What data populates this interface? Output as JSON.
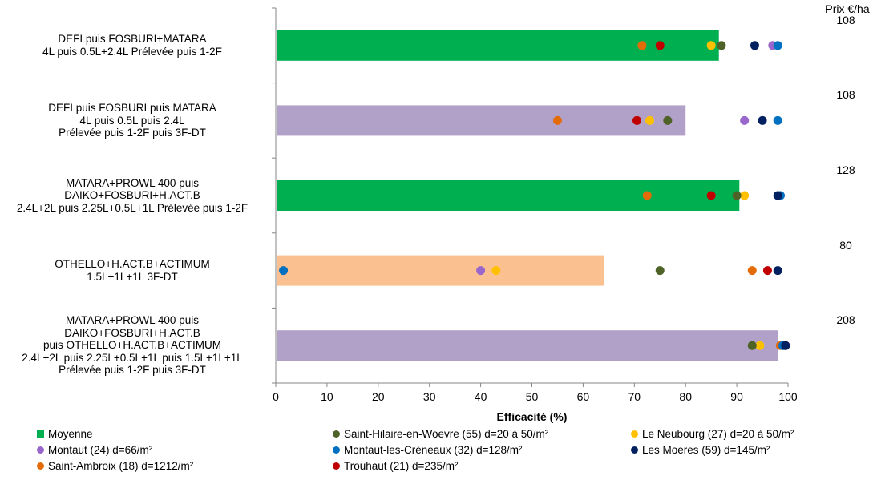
{
  "chart_data": {
    "type": "bar",
    "orientation": "horizontal",
    "xlabel": "Efficacité (%)",
    "xlim": [
      0,
      100
    ],
    "x_ticks": [
      "0",
      "10",
      "20",
      "30",
      "40",
      "50",
      "60",
      "70",
      "80",
      "90",
      "100"
    ],
    "grid": false,
    "price_header": "Prix €/ha",
    "categories": [
      {
        "label": "DEFI puis FOSBURI+MATARA\n4L puis 0.5L+2.4L Prélevée puis 1-2F",
        "moyenne": 86.5,
        "bar_color": "#00b050",
        "price": "108",
        "sites": {
          "saint_hilaire": 87,
          "le_neubourg": 85,
          "montaut": 97,
          "montaut_les_creneaux": 98,
          "les_moeres": 93.5,
          "saint_ambroix": 71.5,
          "trouhaut": 75
        }
      },
      {
        "label": "DEFI puis FOSBURI puis MATARA\n4L puis 0.5L puis 2.4L\nPrélevée puis 1-2F puis 3F-DT",
        "moyenne": 80,
        "bar_color": "#b1a0c7",
        "price": "108",
        "sites": {
          "saint_hilaire": 76.5,
          "le_neubourg": 73,
          "montaut": 91.5,
          "montaut_les_creneaux": 98,
          "les_moeres": 95,
          "saint_ambroix": 55,
          "trouhaut": 70.5
        }
      },
      {
        "label": "MATARA+PROWL 400 puis\nDAIKO+FOSBURI+H.ACT.B\n2.4L+2L puis 2.25L+0.5L+1L  Prélevée puis 1-2F",
        "moyenne": 90.5,
        "bar_color": "#00b050",
        "price": "128",
        "sites": {
          "saint_hilaire": 90,
          "le_neubourg": 91.5,
          "montaut": 98.5,
          "montaut_les_creneaux": 98.5,
          "les_moeres": 98,
          "saint_ambroix": 72.5,
          "trouhaut": 85
        }
      },
      {
        "label": "OTHELLO+H.ACT.B+ACTIMUM\n1.5L+1L+1L  3F-DT",
        "moyenne": 64,
        "bar_color": "#fac090",
        "price": "80",
        "sites": {
          "saint_hilaire": 75,
          "le_neubourg": 43,
          "montaut": 40,
          "montaut_les_creneaux": 1.5,
          "les_moeres": 98,
          "saint_ambroix": 93,
          "trouhaut": 96
        }
      },
      {
        "label": "MATARA+PROWL 400 puis\nDAIKO+FOSBURI+H.ACT.B\npuis OTHELLO+H.ACT.B+ACTIMUM\n2.4L+2L puis 2.25L+0.5L+1L puis 1.5L+1L+1L\nPrélevée puis 1-2F puis 3F-DT",
        "moyenne": 98,
        "bar_color": "#b1a0c7",
        "price": "208",
        "sites": {
          "saint_hilaire": 93,
          "le_neubourg": 94.5,
          "montaut": 99,
          "montaut_les_creneaux": 99,
          "les_moeres": 99.5,
          "saint_ambroix": 98.5,
          "trouhaut": 99.5
        }
      }
    ],
    "series_order": [
      "saint_ambroix",
      "le_neubourg",
      "trouhaut",
      "saint_hilaire",
      "montaut",
      "montaut_les_creneaux",
      "les_moeres"
    ],
    "legend": [
      {
        "key": "moyenne",
        "name": "Moyenne",
        "color": "#00b050",
        "marker": "square"
      },
      {
        "key": "saint_hilaire",
        "name": "Saint-Hilaire-en-Woevre (55) d=20 à 50/m²",
        "color": "#4f6228",
        "marker": "dot"
      },
      {
        "key": "le_neubourg",
        "name": "Le Neubourg (27) d=20 à 50/m²",
        "color": "#ffc000",
        "marker": "dot"
      },
      {
        "key": "montaut",
        "name": "Montaut (24) d=66/m²",
        "color": "#9966cc",
        "marker": "dot"
      },
      {
        "key": "montaut_les_creneaux",
        "name": "Montaut-les-Créneaux (32) d=128/m²",
        "color": "#0070c0",
        "marker": "dot"
      },
      {
        "key": "les_moeres",
        "name": "Les Moeres (59) d=145/m²",
        "color": "#002060",
        "marker": "dot"
      },
      {
        "key": "saint_ambroix",
        "name": "Saint-Ambroix (18) d=1212/m²",
        "color": "#e36c09",
        "marker": "dot"
      },
      {
        "key": "trouhaut",
        "name": "Trouhaut (21) d=235/m²",
        "color": "#c00000",
        "marker": "dot"
      }
    ]
  }
}
